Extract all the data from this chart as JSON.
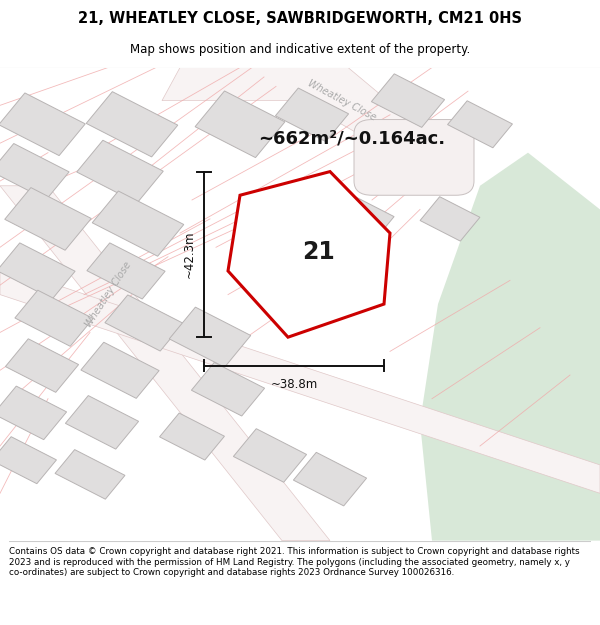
{
  "title": "21, WHEATLEY CLOSE, SAWBRIDGEWORTH, CM21 0HS",
  "subtitle": "Map shows position and indicative extent of the property.",
  "area_text": "~662m²/~0.164ac.",
  "label_21": "21",
  "dim_vertical": "~42.3m",
  "dim_horizontal": "~38.8m",
  "footer": "Contains OS data © Crown copyright and database right 2021. This information is subject to Crown copyright and database rights 2023 and is reproduced with the permission of HM Land Registry. The polygons (including the associated geometry, namely x, y co-ordinates) are subject to Crown copyright and database rights 2023 Ordnance Survey 100026316.",
  "title_color": "#000000",
  "footer_color": "#000000",
  "map_bg": "#f7f2f2",
  "building_fill": "#e0dede",
  "building_stroke": "#b8b4b4",
  "green_area": "#d8e8d8",
  "road_fill": "#ffffff",
  "road_line_color": "#f0aaaa",
  "plot_polygon_color": "#cc0000",
  "dimension_line_color": "#111111",
  "street_label_color": "#aaaaaa",
  "cul_de_sac_fill": "#f0ecec",
  "cul_de_sac_stroke": "#c8c0c0"
}
